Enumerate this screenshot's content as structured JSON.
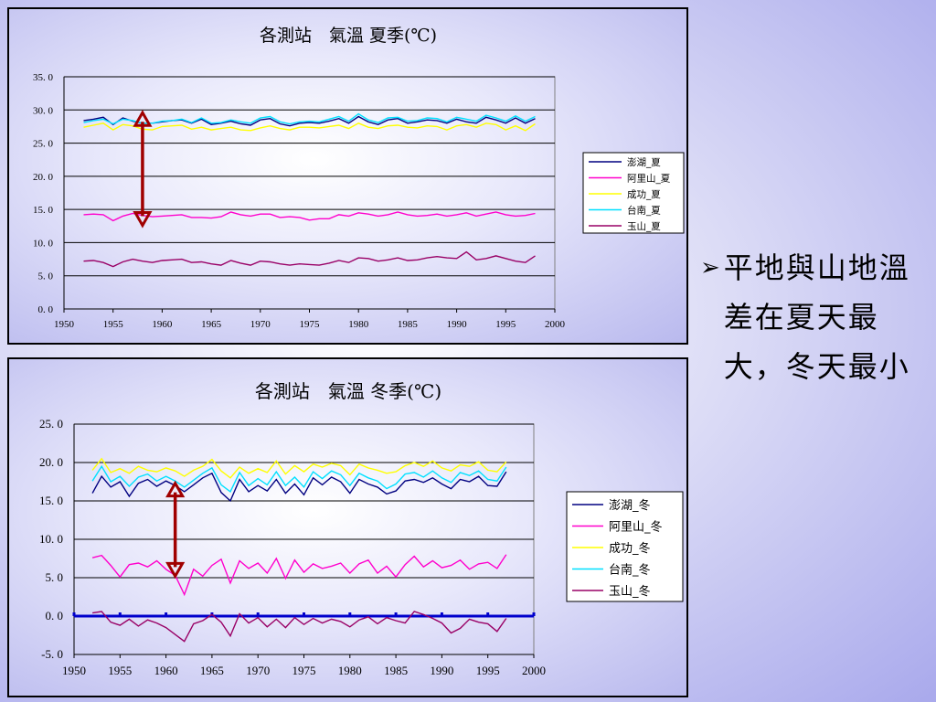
{
  "bullet": {
    "text": "平地與山地溫差在夏天最大，冬天最小",
    "marker_icon": "arrow-bullet-icon"
  },
  "chart_data": [
    {
      "type": "line",
      "title": "各測站　氣溫  夏季(℃)",
      "xlim": [
        1950,
        2000
      ],
      "ylim": [
        0,
        35
      ],
      "x_ticks": [
        "1950",
        "1955",
        "1960",
        "1965",
        "1970",
        "1975",
        "1980",
        "1985",
        "1990",
        "1995",
        "2000"
      ],
      "y_ticks": [
        "0. 0",
        "5. 0",
        "10. 0",
        "15. 0",
        "20. 0",
        "25. 0",
        "30. 0",
        "35. 0"
      ],
      "grid": true,
      "legend_position": "right",
      "x": [
        1952,
        1953,
        1954,
        1955,
        1956,
        1957,
        1958,
        1959,
        1960,
        1961,
        1962,
        1963,
        1964,
        1965,
        1966,
        1967,
        1968,
        1969,
        1970,
        1971,
        1972,
        1973,
        1974,
        1975,
        1976,
        1977,
        1978,
        1979,
        1980,
        1981,
        1982,
        1983,
        1984,
        1985,
        1986,
        1987,
        1988,
        1989,
        1990,
        1991,
        1992,
        1993,
        1994,
        1995,
        1996,
        1997,
        1998
      ],
      "series": [
        {
          "name": "澎湖_夏",
          "color": "#000080",
          "values": [
            28.4,
            28.6,
            28.9,
            27.8,
            28.8,
            28.3,
            28.0,
            28.0,
            28.2,
            28.4,
            28.5,
            28.0,
            28.6,
            27.8,
            28.0,
            28.3,
            27.9,
            27.7,
            28.5,
            28.7,
            27.9,
            27.6,
            28.0,
            28.1,
            28.0,
            28.3,
            28.7,
            28.0,
            29.0,
            28.2,
            27.8,
            28.5,
            28.7,
            28.0,
            28.2,
            28.5,
            28.4,
            28.0,
            28.6,
            28.2,
            28.0,
            28.9,
            28.5,
            28.0,
            28.8,
            28.0,
            28.7
          ]
        },
        {
          "name": "阿里山_夏",
          "color": "#ff00cc",
          "values": [
            14.2,
            14.3,
            14.2,
            13.3,
            14.0,
            14.4,
            14.1,
            13.9,
            14.0,
            14.1,
            14.2,
            13.8,
            13.8,
            13.7,
            13.9,
            14.6,
            14.2,
            14.0,
            14.3,
            14.3,
            13.8,
            13.9,
            13.8,
            13.4,
            13.6,
            13.6,
            14.2,
            14.0,
            14.5,
            14.3,
            14.0,
            14.2,
            14.6,
            14.2,
            14.0,
            14.1,
            14.3,
            14.0,
            14.2,
            14.5,
            14.0,
            14.3,
            14.6,
            14.2,
            14.0,
            14.1,
            14.4
          ]
        },
        {
          "name": "成功_夏",
          "color": "#ffff00",
          "values": [
            27.4,
            27.7,
            28.0,
            27.0,
            27.8,
            27.6,
            27.1,
            27.0,
            27.5,
            27.6,
            27.7,
            27.1,
            27.4,
            27.0,
            27.2,
            27.4,
            27.0,
            26.9,
            27.3,
            27.6,
            27.2,
            27.0,
            27.4,
            27.4,
            27.3,
            27.5,
            27.7,
            27.2,
            28.0,
            27.4,
            27.2,
            27.6,
            27.7,
            27.4,
            27.3,
            27.6,
            27.5,
            27.0,
            27.6,
            27.8,
            27.4,
            28.0,
            27.8,
            27.0,
            27.6,
            26.9,
            27.9
          ]
        },
        {
          "name": "台南_夏",
          "color": "#00e0ff",
          "values": [
            28.1,
            28.4,
            28.6,
            27.9,
            28.6,
            28.4,
            28.0,
            28.0,
            28.3,
            28.4,
            28.6,
            28.1,
            28.8,
            28.0,
            28.1,
            28.5,
            28.2,
            28.0,
            28.8,
            29.0,
            28.2,
            27.9,
            28.2,
            28.3,
            28.2,
            28.6,
            29.0,
            28.3,
            29.4,
            28.5,
            28.1,
            28.8,
            28.9,
            28.3,
            28.4,
            28.8,
            28.7,
            28.2,
            28.9,
            28.6,
            28.3,
            29.2,
            28.8,
            28.3,
            29.1,
            28.3,
            29.0
          ]
        },
        {
          "name": "玉山_夏",
          "color": "#990066",
          "values": [
            7.2,
            7.3,
            7.0,
            6.4,
            7.1,
            7.5,
            7.2,
            7.0,
            7.3,
            7.4,
            7.5,
            7.0,
            7.1,
            6.8,
            6.6,
            7.3,
            6.9,
            6.6,
            7.2,
            7.1,
            6.8,
            6.6,
            6.8,
            6.7,
            6.6,
            6.9,
            7.3,
            7.0,
            7.7,
            7.6,
            7.2,
            7.4,
            7.7,
            7.3,
            7.4,
            7.7,
            7.9,
            7.7,
            7.6,
            8.6,
            7.4,
            7.6,
            8.0,
            7.6,
            7.2,
            7.0,
            8.0
          ]
        }
      ]
    },
    {
      "type": "line",
      "title": "各測站　氣溫  冬季(℃)",
      "xlim": [
        1950,
        2000
      ],
      "ylim": [
        -5,
        25
      ],
      "x_ticks": [
        "1950",
        "1955",
        "1960",
        "1965",
        "1970",
        "1975",
        "1980",
        "1985",
        "1990",
        "1995",
        "2000"
      ],
      "y_ticks": [
        "-5. 0",
        "0. 0",
        "5. 0",
        "10. 0",
        "15. 0",
        "20. 0",
        "25. 0"
      ],
      "grid": true,
      "legend_position": "right",
      "x": [
        1952,
        1953,
        1954,
        1955,
        1956,
        1957,
        1958,
        1959,
        1960,
        1961,
        1962,
        1963,
        1964,
        1965,
        1966,
        1967,
        1968,
        1969,
        1970,
        1971,
        1972,
        1973,
        1974,
        1975,
        1976,
        1977,
        1978,
        1979,
        1980,
        1981,
        1982,
        1983,
        1984,
        1985,
        1986,
        1987,
        1988,
        1989,
        1990,
        1991,
        1992,
        1993,
        1994,
        1995,
        1996,
        1997
      ],
      "series": [
        {
          "name": "澎湖_冬",
          "color": "#000080",
          "values": [
            16.0,
            18.2,
            16.8,
            17.5,
            15.6,
            17.3,
            17.8,
            16.9,
            17.6,
            17.0,
            16.2,
            17.1,
            18.0,
            18.6,
            16.1,
            15.0,
            17.8,
            16.2,
            17.0,
            16.3,
            17.8,
            16.0,
            17.2,
            15.8,
            18.0,
            17.1,
            18.1,
            17.5,
            16.0,
            17.8,
            17.2,
            16.8,
            15.9,
            16.3,
            17.6,
            17.8,
            17.4,
            18.0,
            17.2,
            16.6,
            17.8,
            17.5,
            18.2,
            17.0,
            16.9,
            18.8
          ]
        },
        {
          "name": "阿里山_冬",
          "color": "#ff00cc",
          "values": [
            7.6,
            7.9,
            6.6,
            5.1,
            6.7,
            6.9,
            6.4,
            7.2,
            6.1,
            5.3,
            2.8,
            6.1,
            5.2,
            6.6,
            7.4,
            4.3,
            7.2,
            6.2,
            6.9,
            5.6,
            7.5,
            4.9,
            7.3,
            5.7,
            6.8,
            6.2,
            6.5,
            6.9,
            5.6,
            6.8,
            7.3,
            5.6,
            6.5,
            5.1,
            6.7,
            7.8,
            6.4,
            7.2,
            6.3,
            6.6,
            7.3,
            6.1,
            6.8,
            7.0,
            6.2,
            8.0
          ]
        },
        {
          "name": "成功_冬",
          "color": "#ffff00",
          "values": [
            19.0,
            20.5,
            18.7,
            19.2,
            18.6,
            19.5,
            19.0,
            18.8,
            19.3,
            18.9,
            18.2,
            19.0,
            19.5,
            20.4,
            18.9,
            18.0,
            19.4,
            18.6,
            19.2,
            18.7,
            20.2,
            18.5,
            19.6,
            18.8,
            19.8,
            19.4,
            19.9,
            19.6,
            18.4,
            19.8,
            19.3,
            19.0,
            18.6,
            18.8,
            19.6,
            20.0,
            19.5,
            20.2,
            19.3,
            18.9,
            19.7,
            19.5,
            20.1,
            19.0,
            18.8,
            20.1
          ]
        },
        {
          "name": "台南_冬",
          "color": "#00e0ff",
          "values": [
            17.6,
            19.5,
            17.5,
            18.2,
            16.9,
            18.1,
            18.5,
            17.6,
            18.2,
            17.6,
            16.8,
            17.7,
            18.6,
            19.3,
            17.1,
            16.2,
            18.7,
            17.0,
            17.9,
            17.1,
            18.8,
            17.0,
            18.1,
            16.8,
            18.8,
            17.9,
            18.9,
            18.4,
            17.0,
            18.6,
            18.0,
            17.6,
            16.6,
            17.2,
            18.5,
            18.7,
            18.1,
            18.9,
            18.0,
            17.4,
            18.7,
            18.3,
            18.9,
            17.8,
            17.6,
            19.4
          ]
        },
        {
          "name": "玉山_冬",
          "color": "#990066",
          "values": [
            0.4,
            0.6,
            -0.8,
            -1.2,
            -0.4,
            -1.3,
            -0.5,
            -0.9,
            -1.5,
            -2.4,
            -3.3,
            -1.0,
            -0.6,
            0.2,
            -0.8,
            -2.6,
            0.3,
            -0.9,
            -0.2,
            -1.4,
            -0.4,
            -1.5,
            -0.2,
            -1.1,
            -0.3,
            -0.9,
            -0.4,
            -0.7,
            -1.4,
            -0.5,
            -0.1,
            -1.0,
            -0.2,
            -0.6,
            -0.9,
            0.6,
            0.2,
            -0.3,
            -0.9,
            -2.2,
            -1.6,
            -0.4,
            -0.8,
            -1.0,
            -2.0,
            -0.3
          ]
        }
      ]
    }
  ]
}
